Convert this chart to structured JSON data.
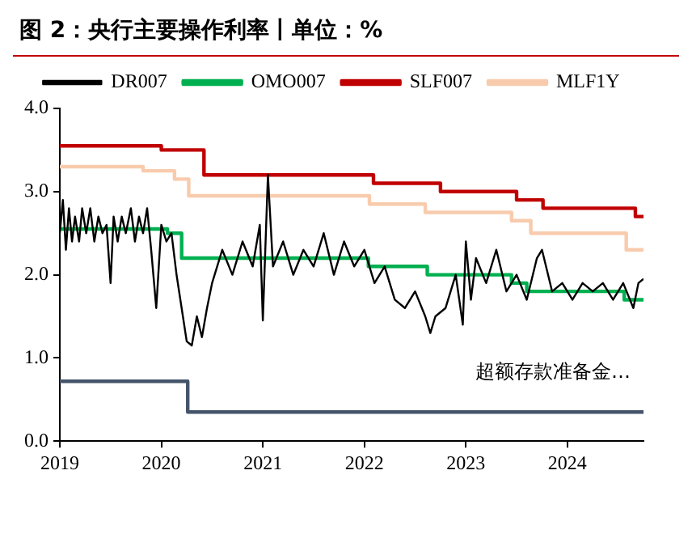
{
  "chart_data": {
    "type": "line",
    "title": "图 2：央行主要操作利率丨单位：%",
    "xlim": [
      2019,
      2024.75
    ],
    "xticks": [
      2019,
      2020,
      2021,
      2022,
      2023,
      2024
    ],
    "ylim": [
      0,
      4
    ],
    "yticks": [
      {
        "value": 0,
        "label": "0.0"
      },
      {
        "value": 1,
        "label": "1.0"
      },
      {
        "value": 2,
        "label": "2.0"
      },
      {
        "value": 3,
        "label": "3.0"
      },
      {
        "value": 4,
        "label": "4.0"
      }
    ],
    "grid": false,
    "legend": "top",
    "marker": "none",
    "line_style": "solid",
    "annotations": [
      "超额存款准备金…"
    ],
    "series": [
      {
        "name": "DR007",
        "type": "line",
        "color": "#000000",
        "x": [
          2019,
          2019.03,
          2019.06,
          2019.09,
          2019.12,
          2019.15,
          2019.19,
          2019.22,
          2019.26,
          2019.3,
          2019.34,
          2019.38,
          2019.42,
          2019.46,
          2019.5,
          2019.53,
          2019.57,
          2019.61,
          2019.65,
          2019.7,
          2019.74,
          2019.78,
          2019.82,
          2019.86,
          2019.9,
          2019.95,
          2020,
          2020.05,
          2020.1,
          2020.15,
          2020.2,
          2020.25,
          2020.3,
          2020.35,
          2020.4,
          2020.45,
          2020.5,
          2020.55,
          2020.6,
          2020.7,
          2020.8,
          2020.9,
          2020.97,
          2021.0,
          2021.05,
          2021.1,
          2021.2,
          2021.3,
          2021.4,
          2021.5,
          2021.6,
          2021.7,
          2021.8,
          2021.9,
          2022.0,
          2022.1,
          2022.2,
          2022.3,
          2022.4,
          2022.5,
          2022.6,
          2022.65,
          2022.7,
          2022.8,
          2022.9,
          2022.97,
          2023.0,
          2023.05,
          2023.1,
          2023.2,
          2023.3,
          2023.4,
          2023.5,
          2023.6,
          2023.7,
          2023.75,
          2023.85,
          2023.95,
          2024.05,
          2024.15,
          2024.25,
          2024.35,
          2024.45,
          2024.55,
          2024.65,
          2024.7,
          2024.75
        ],
        "values": [
          2.5,
          2.9,
          2.3,
          2.8,
          2.4,
          2.7,
          2.4,
          2.8,
          2.5,
          2.8,
          2.4,
          2.7,
          2.5,
          2.6,
          1.9,
          2.7,
          2.4,
          2.7,
          2.5,
          2.8,
          2.4,
          2.7,
          2.5,
          2.8,
          2.3,
          1.6,
          2.6,
          2.4,
          2.5,
          2.0,
          1.6,
          1.2,
          1.15,
          1.5,
          1.25,
          1.6,
          1.9,
          2.1,
          2.3,
          2.0,
          2.4,
          2.1,
          2.6,
          1.45,
          3.2,
          2.1,
          2.4,
          2.0,
          2.3,
          2.1,
          2.5,
          2.0,
          2.4,
          2.1,
          2.3,
          1.9,
          2.1,
          1.7,
          1.6,
          1.8,
          1.5,
          1.3,
          1.5,
          1.6,
          2.0,
          1.4,
          2.4,
          1.7,
          2.2,
          1.9,
          2.3,
          1.8,
          2.0,
          1.7,
          2.2,
          2.3,
          1.8,
          1.9,
          1.7,
          1.9,
          1.8,
          1.9,
          1.7,
          1.9,
          1.6,
          1.9,
          1.95
        ]
      },
      {
        "name": "OMO007",
        "type": "step",
        "color": "#00b050",
        "x": [
          2019,
          2020.06,
          2020.2,
          2022.04,
          2022.62,
          2023.45,
          2023.6,
          2024.56,
          2024.75
        ],
        "values": [
          2.55,
          2.5,
          2.2,
          2.1,
          2.0,
          1.9,
          1.8,
          1.7,
          1.7
        ]
      },
      {
        "name": "SLF007",
        "type": "step",
        "color": "#c00000",
        "x": [
          2019,
          2020.0,
          2020.42,
          2022.09,
          2022.75,
          2023.5,
          2023.76,
          2024.67,
          2024.75
        ],
        "values": [
          3.55,
          3.5,
          3.2,
          3.1,
          3.0,
          2.9,
          2.8,
          2.7,
          2.7
        ]
      },
      {
        "name": "MLF1Y",
        "type": "step",
        "color": "#f8cbad",
        "x": [
          2019,
          2019.82,
          2020.13,
          2020.27,
          2022.05,
          2022.6,
          2023.45,
          2023.64,
          2024.58,
          2024.75
        ],
        "values": [
          3.3,
          3.25,
          3.15,
          2.95,
          2.85,
          2.75,
          2.65,
          2.5,
          2.3,
          2.3
        ]
      },
      {
        "type": "step",
        "color": "#44546a",
        "x": [
          2019,
          2020.26,
          2024.75
        ],
        "values": [
          0.72,
          0.35,
          0.35
        ]
      }
    ]
  }
}
